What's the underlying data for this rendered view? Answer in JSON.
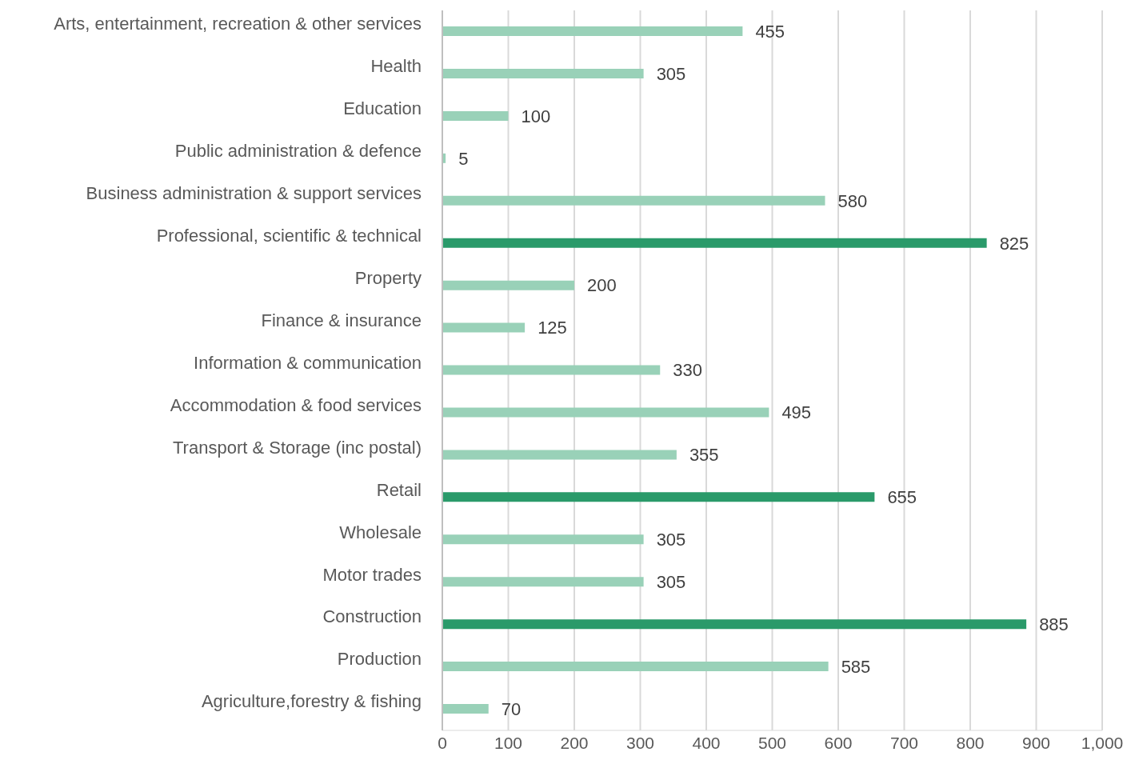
{
  "chart_data": {
    "type": "bar",
    "orientation": "horizontal",
    "categories": [
      "Arts, entertainment, recreation & other services",
      "Health",
      "Education",
      "Public administration & defence",
      "Business administration & support services",
      "Professional, scientific & technical",
      "Property",
      "Finance & insurance",
      "Information & communication",
      "Accommodation & food services",
      "Transport & Storage (inc postal)",
      "Retail",
      "Wholesale",
      "Motor trades",
      "Construction",
      "Production",
      "Agriculture,forestry & fishing"
    ],
    "values": [
      455,
      305,
      100,
      5,
      580,
      825,
      200,
      125,
      330,
      495,
      355,
      655,
      305,
      305,
      885,
      585,
      70
    ],
    "colors": [
      "#99d1b8",
      "#99d1b8",
      "#99d1b8",
      "#99d1b8",
      "#99d1b8",
      "#2a9a6a",
      "#99d1b8",
      "#99d1b8",
      "#99d1b8",
      "#99d1b8",
      "#99d1b8",
      "#2a9a6a",
      "#99d1b8",
      "#99d1b8",
      "#2a9a6a",
      "#99d1b8",
      "#99d1b8"
    ],
    "xlim": [
      0,
      1000
    ],
    "xticks": [
      0,
      100,
      200,
      300,
      400,
      500,
      600,
      700,
      800,
      900,
      {
        "value": 1000,
        "label": "1,000"
      }
    ],
    "grid": "x",
    "data_labels": true,
    "legend": false
  }
}
